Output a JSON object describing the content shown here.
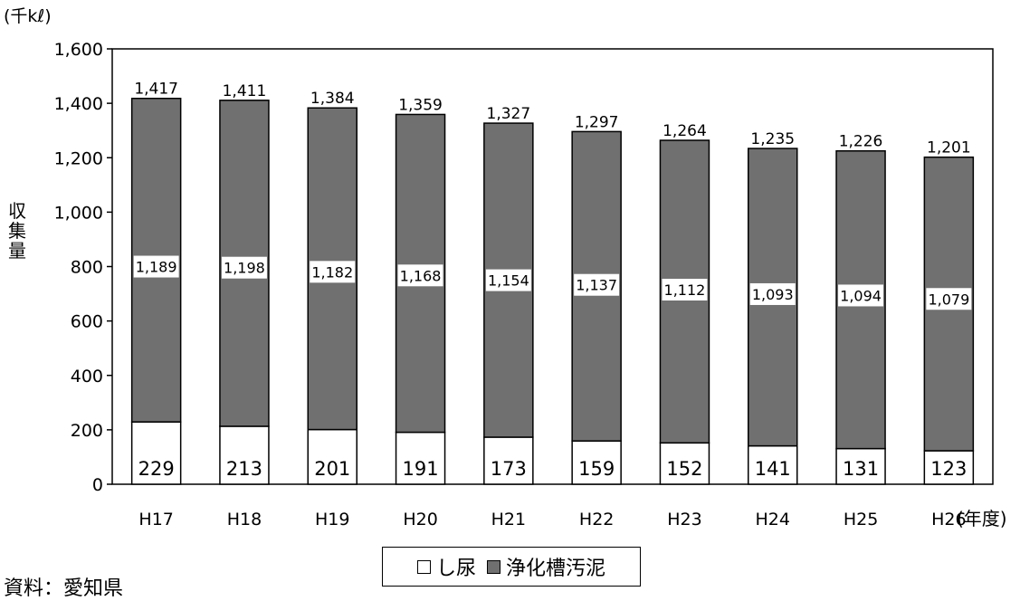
{
  "chart_data": {
    "type": "bar",
    "stacked": true,
    "unit_label": "(千kℓ)",
    "ylabel": "収集量",
    "x_suffix": "(年度)",
    "categories": [
      "H17",
      "H18",
      "H19",
      "H20",
      "H21",
      "H22",
      "H23",
      "H24",
      "H25",
      "H26"
    ],
    "series": [
      {
        "name": "し尿",
        "color": "#ffffff",
        "values": [
          229,
          213,
          201,
          191,
          173,
          159,
          152,
          141,
          131,
          123
        ]
      },
      {
        "name": "浄化槽汚泥",
        "color": "#707070",
        "values": [
          1189,
          1198,
          1182,
          1168,
          1154,
          1137,
          1112,
          1093,
          1094,
          1079
        ]
      }
    ],
    "total_labels": [
      "1,417",
      "1,411",
      "1,384",
      "1,359",
      "1,327",
      "1,297",
      "1,264",
      "1,235",
      "1,226",
      "1,201"
    ],
    "bottom_labels": [
      "229",
      "213",
      "201",
      "191",
      "173",
      "159",
      "152",
      "141",
      "131",
      "123"
    ],
    "middle_labels": [
      "1,189",
      "1,198",
      "1,182",
      "1,168",
      "1,154",
      "1,137",
      "1,112",
      "1,093",
      "1,094",
      "1,079"
    ],
    "ylim": [
      0,
      1600
    ],
    "yticks": [
      0,
      200,
      400,
      600,
      800,
      1000,
      1200,
      1400,
      1600
    ],
    "ytick_labels": [
      "0",
      "200",
      "400",
      "600",
      "800",
      "1,000",
      "1,200",
      "1,400",
      "1,600"
    ],
    "grid": false,
    "legend_position": "bottom"
  },
  "legend": {
    "items": [
      {
        "label": "し尿",
        "color": "#ffffff"
      },
      {
        "label": "浄化槽汚泥",
        "color": "#707070"
      }
    ]
  },
  "source": "資料：愛知県"
}
